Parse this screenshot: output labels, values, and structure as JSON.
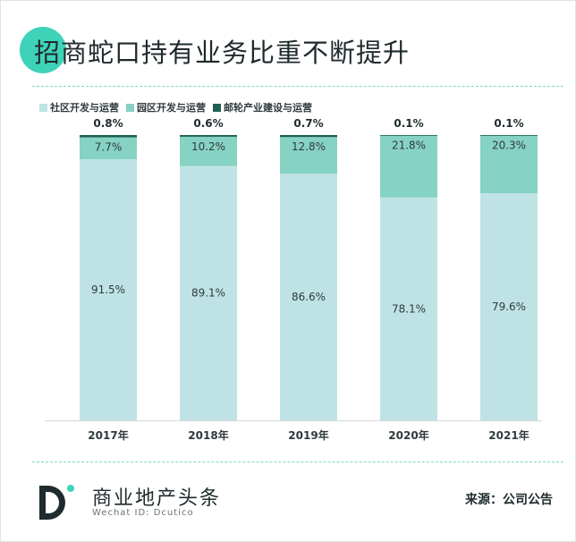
{
  "page": {
    "title": "招商蛇口持有业务比重不断提升",
    "brand_name": "商业地产头条",
    "brand_sub": "Wechat ID: Dcutico",
    "source": "来源：公司公告"
  },
  "colors": {
    "accent": "#3ed3b9",
    "series_1": "#bfe3e5",
    "series_2": "#86d2c3",
    "series_3": "#1f5f52",
    "logo_dark": "#1e2b2f"
  },
  "chart_data": {
    "type": "bar",
    "stacked": true,
    "categories": [
      "2017年",
      "2018年",
      "2019年",
      "2020年",
      "2021年"
    ],
    "series": [
      {
        "name": "社区开发与运营",
        "values": [
          91.5,
          89.1,
          86.6,
          78.1,
          79.6
        ],
        "labels": [
          "91.5%",
          "89.1%",
          "86.6%",
          "78.1%",
          "79.6%"
        ]
      },
      {
        "name": "园区开发与运营",
        "values": [
          7.7,
          10.2,
          12.8,
          21.8,
          20.3
        ],
        "labels": [
          "7.7%",
          "10.2%",
          "12.8%",
          "21.8%",
          "20.3%"
        ]
      },
      {
        "name": "邮轮产业建设与运营",
        "values": [
          0.8,
          0.6,
          0.7,
          0.1,
          0.1
        ],
        "labels": [
          "0.8%",
          "0.6%",
          "0.7%",
          "0.1%",
          "0.1%"
        ]
      }
    ],
    "ylim": [
      0,
      100
    ],
    "grid": false,
    "legend_position": "top-left"
  }
}
